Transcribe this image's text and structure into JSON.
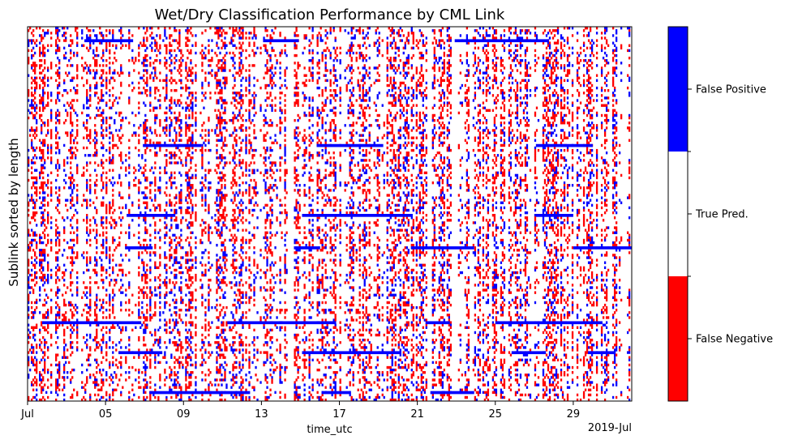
{
  "chart_data": {
    "type": "heatmap",
    "title": "Wet/Dry Classification Performance by CML Link",
    "xlabel": "time_utc",
    "ylabel": "Sublink sorted by length",
    "x_tick_labels": [
      "Jul",
      "05",
      "09",
      "13",
      "17",
      "21",
      "25",
      "29"
    ],
    "x_offset_label": "2019-Jul",
    "x_range": [
      "2019-07-01",
      "2019-08-01"
    ],
    "categories": [
      "False Negative",
      "True Pred.",
      "False Positive"
    ],
    "colors": {
      "False Negative": "#ff0000",
      "True Pred.": "#ffffff",
      "False Positive": "#0000ff"
    },
    "colorbar_labels": [
      "False Positive",
      "True Pred.",
      "False Negative"
    ]
  }
}
